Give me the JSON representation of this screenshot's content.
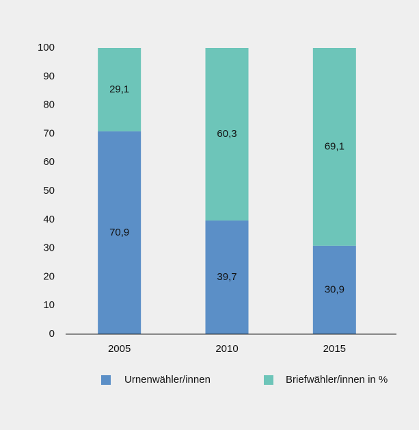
{
  "chart_data": {
    "type": "stacked_bar",
    "categories": [
      "2005",
      "2010",
      "2015"
    ],
    "series": [
      {
        "name": "Urnenwähler/innen",
        "color": "#5b8fc7",
        "values": [
          70.9,
          39.7,
          30.9
        ],
        "value_labels": [
          "70,9",
          "39,7",
          "30,9"
        ]
      },
      {
        "name": "Briefwähler/innen in %",
        "color": "#6dc5b9",
        "values": [
          29.1,
          60.3,
          69.1
        ],
        "value_labels": [
          "29,1",
          "60,3",
          "69,1"
        ]
      }
    ],
    "ylim": [
      0,
      100
    ],
    "yticks": [
      0,
      10,
      20,
      30,
      40,
      50,
      60,
      70,
      80,
      90,
      100
    ],
    "grid": false
  }
}
